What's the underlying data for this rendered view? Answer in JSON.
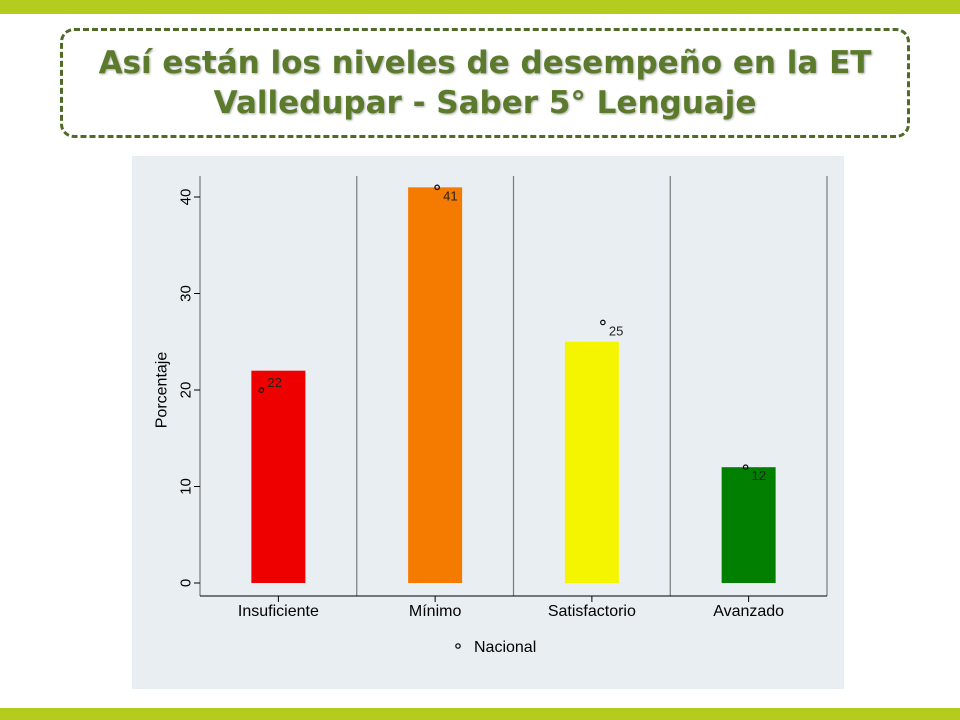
{
  "slide": {
    "title": "Así están los niveles de desempeño en la ET Valledupar - Saber 5° Lenguaje",
    "accent_color": "#b3cc1e",
    "title_color": "#5b7a2c"
  },
  "chart_data": {
    "type": "bar",
    "title": "",
    "xlabel": "",
    "ylabel": "Porcentaje",
    "ylim": [
      0,
      42
    ],
    "yticks": [
      0,
      10,
      20,
      30,
      40
    ],
    "categories": [
      "Insuficiente",
      "Mínimo",
      "Satisfactorio",
      "Avanzado"
    ],
    "values": [
      22,
      41,
      25,
      12
    ],
    "data_labels": [
      "22",
      "41",
      "25",
      "12"
    ],
    "bar_colors": [
      "#ee0000",
      "#f47a00",
      "#f5f500",
      "#007f00"
    ],
    "reference_series": {
      "name": "Nacional",
      "values": [
        20,
        41,
        27,
        12
      ],
      "marker": "hollow-circle"
    },
    "legend": {
      "position": "bottom",
      "label": "Nacional"
    },
    "grid": false,
    "plot_background": "#e8eef2"
  }
}
